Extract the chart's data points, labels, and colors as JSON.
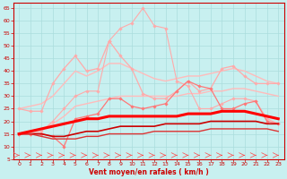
{
  "xlabel": "Vent moyen/en rafales ( km/h )",
  "bg_color": "#c8f0f0",
  "grid_color": "#aadddd",
  "xlim": [
    -0.5,
    23.5
  ],
  "ylim": [
    5,
    67
  ],
  "yticks": [
    5,
    10,
    15,
    20,
    25,
    30,
    35,
    40,
    45,
    50,
    55,
    60,
    65
  ],
  "xticks": [
    0,
    1,
    2,
    3,
    4,
    5,
    6,
    7,
    8,
    9,
    10,
    11,
    12,
    13,
    14,
    15,
    16,
    17,
    18,
    19,
    20,
    21,
    22,
    23
  ],
  "series": [
    {
      "x": [
        0,
        1,
        2,
        3,
        4,
        5,
        6,
        7,
        8,
        9,
        10,
        11,
        12,
        13,
        14,
        15,
        16,
        17,
        18,
        19,
        20,
        21,
        22,
        23
      ],
      "y": [
        15,
        15,
        16,
        20,
        25,
        30,
        32,
        32,
        52,
        57,
        59,
        65,
        58,
        57,
        36,
        34,
        25,
        25,
        27,
        29,
        29,
        28,
        21,
        19
      ],
      "color": "#ffaaaa",
      "lw": 0.8,
      "marker": "D",
      "ms": 1.8,
      "zorder": 3
    },
    {
      "x": [
        0,
        1,
        2,
        3,
        4,
        5,
        6,
        7,
        8,
        9,
        10,
        11,
        12,
        13,
        14,
        15,
        16,
        17,
        18,
        19,
        20,
        21,
        22,
        23
      ],
      "y": [
        25,
        26,
        27,
        30,
        35,
        40,
        38,
        40,
        43,
        43,
        41,
        39,
        37,
        36,
        37,
        38,
        38,
        39,
        40,
        41,
        40,
        38,
        36,
        35
      ],
      "color": "#ffbbbb",
      "lw": 1.0,
      "marker": null,
      "ms": 0,
      "zorder": 2
    },
    {
      "x": [
        0,
        1,
        2,
        3,
        4,
        5,
        6,
        7,
        8,
        9,
        10,
        11,
        12,
        13,
        14,
        15,
        16,
        17,
        18,
        19,
        20,
        21,
        22,
        23
      ],
      "y": [
        25,
        24,
        24,
        35,
        41,
        46,
        40,
        41,
        52,
        46,
        41,
        31,
        29,
        29,
        32,
        36,
        32,
        33,
        41,
        42,
        38,
        35,
        35,
        35
      ],
      "color": "#ffaaaa",
      "lw": 0.9,
      "marker": "D",
      "ms": 1.8,
      "zorder": 3
    },
    {
      "x": [
        0,
        1,
        2,
        3,
        4,
        5,
        6,
        7,
        8,
        9,
        10,
        11,
        12,
        13,
        14,
        15,
        16,
        17,
        18,
        19,
        20,
        21,
        22,
        23
      ],
      "y": [
        15,
        16,
        17,
        19,
        22,
        26,
        27,
        28,
        29,
        30,
        30,
        30,
        30,
        30,
        30,
        31,
        31,
        32,
        32,
        33,
        33,
        32,
        31,
        30
      ],
      "color": "#ffbbbb",
      "lw": 1.0,
      "marker": null,
      "ms": 0,
      "zorder": 2
    },
    {
      "x": [
        0,
        1,
        2,
        3,
        4,
        5,
        6,
        7,
        8,
        9,
        10,
        11,
        12,
        13,
        14,
        15,
        16,
        17,
        18,
        19,
        20,
        21,
        22,
        23
      ],
      "y": [
        15,
        15,
        15,
        14,
        10,
        21,
        22,
        23,
        29,
        29,
        26,
        25,
        26,
        27,
        32,
        36,
        34,
        33,
        25,
        25,
        27,
        28,
        20,
        19
      ],
      "color": "#ff7777",
      "lw": 0.9,
      "marker": "D",
      "ms": 1.8,
      "zorder": 4
    },
    {
      "x": [
        0,
        1,
        2,
        3,
        4,
        5,
        6,
        7,
        8,
        9,
        10,
        11,
        12,
        13,
        14,
        15,
        16,
        17,
        18,
        19,
        20,
        21,
        22,
        23
      ],
      "y": [
        15,
        16,
        17,
        18,
        19,
        20,
        21,
        21,
        22,
        22,
        22,
        22,
        22,
        22,
        22,
        23,
        23,
        23,
        24,
        24,
        24,
        23,
        22,
        21
      ],
      "color": "#ff0000",
      "lw": 2.2,
      "marker": null,
      "ms": 0,
      "zorder": 6
    },
    {
      "x": [
        0,
        1,
        2,
        3,
        4,
        5,
        6,
        7,
        8,
        9,
        10,
        11,
        12,
        13,
        14,
        15,
        16,
        17,
        18,
        19,
        20,
        21,
        22,
        23
      ],
      "y": [
        15,
        15,
        15,
        14,
        14,
        15,
        16,
        16,
        17,
        18,
        18,
        18,
        18,
        19,
        19,
        19,
        19,
        20,
        20,
        20,
        20,
        20,
        19,
        19
      ],
      "color": "#cc0000",
      "lw": 1.2,
      "marker": null,
      "ms": 0,
      "zorder": 5
    },
    {
      "x": [
        0,
        1,
        2,
        3,
        4,
        5,
        6,
        7,
        8,
        9,
        10,
        11,
        12,
        13,
        14,
        15,
        16,
        17,
        18,
        19,
        20,
        21,
        22,
        23
      ],
      "y": [
        15,
        15,
        14,
        13,
        13,
        13,
        14,
        14,
        15,
        15,
        15,
        15,
        16,
        16,
        16,
        16,
        16,
        17,
        17,
        17,
        17,
        17,
        17,
        16
      ],
      "color": "#dd3333",
      "lw": 1.0,
      "marker": null,
      "ms": 0,
      "zorder": 5
    }
  ],
  "wind_arrow_color": "#ff4444",
  "axis_color": "#cc0000",
  "xlabel_color": "#cc0000",
  "tick_color": "#cc0000"
}
